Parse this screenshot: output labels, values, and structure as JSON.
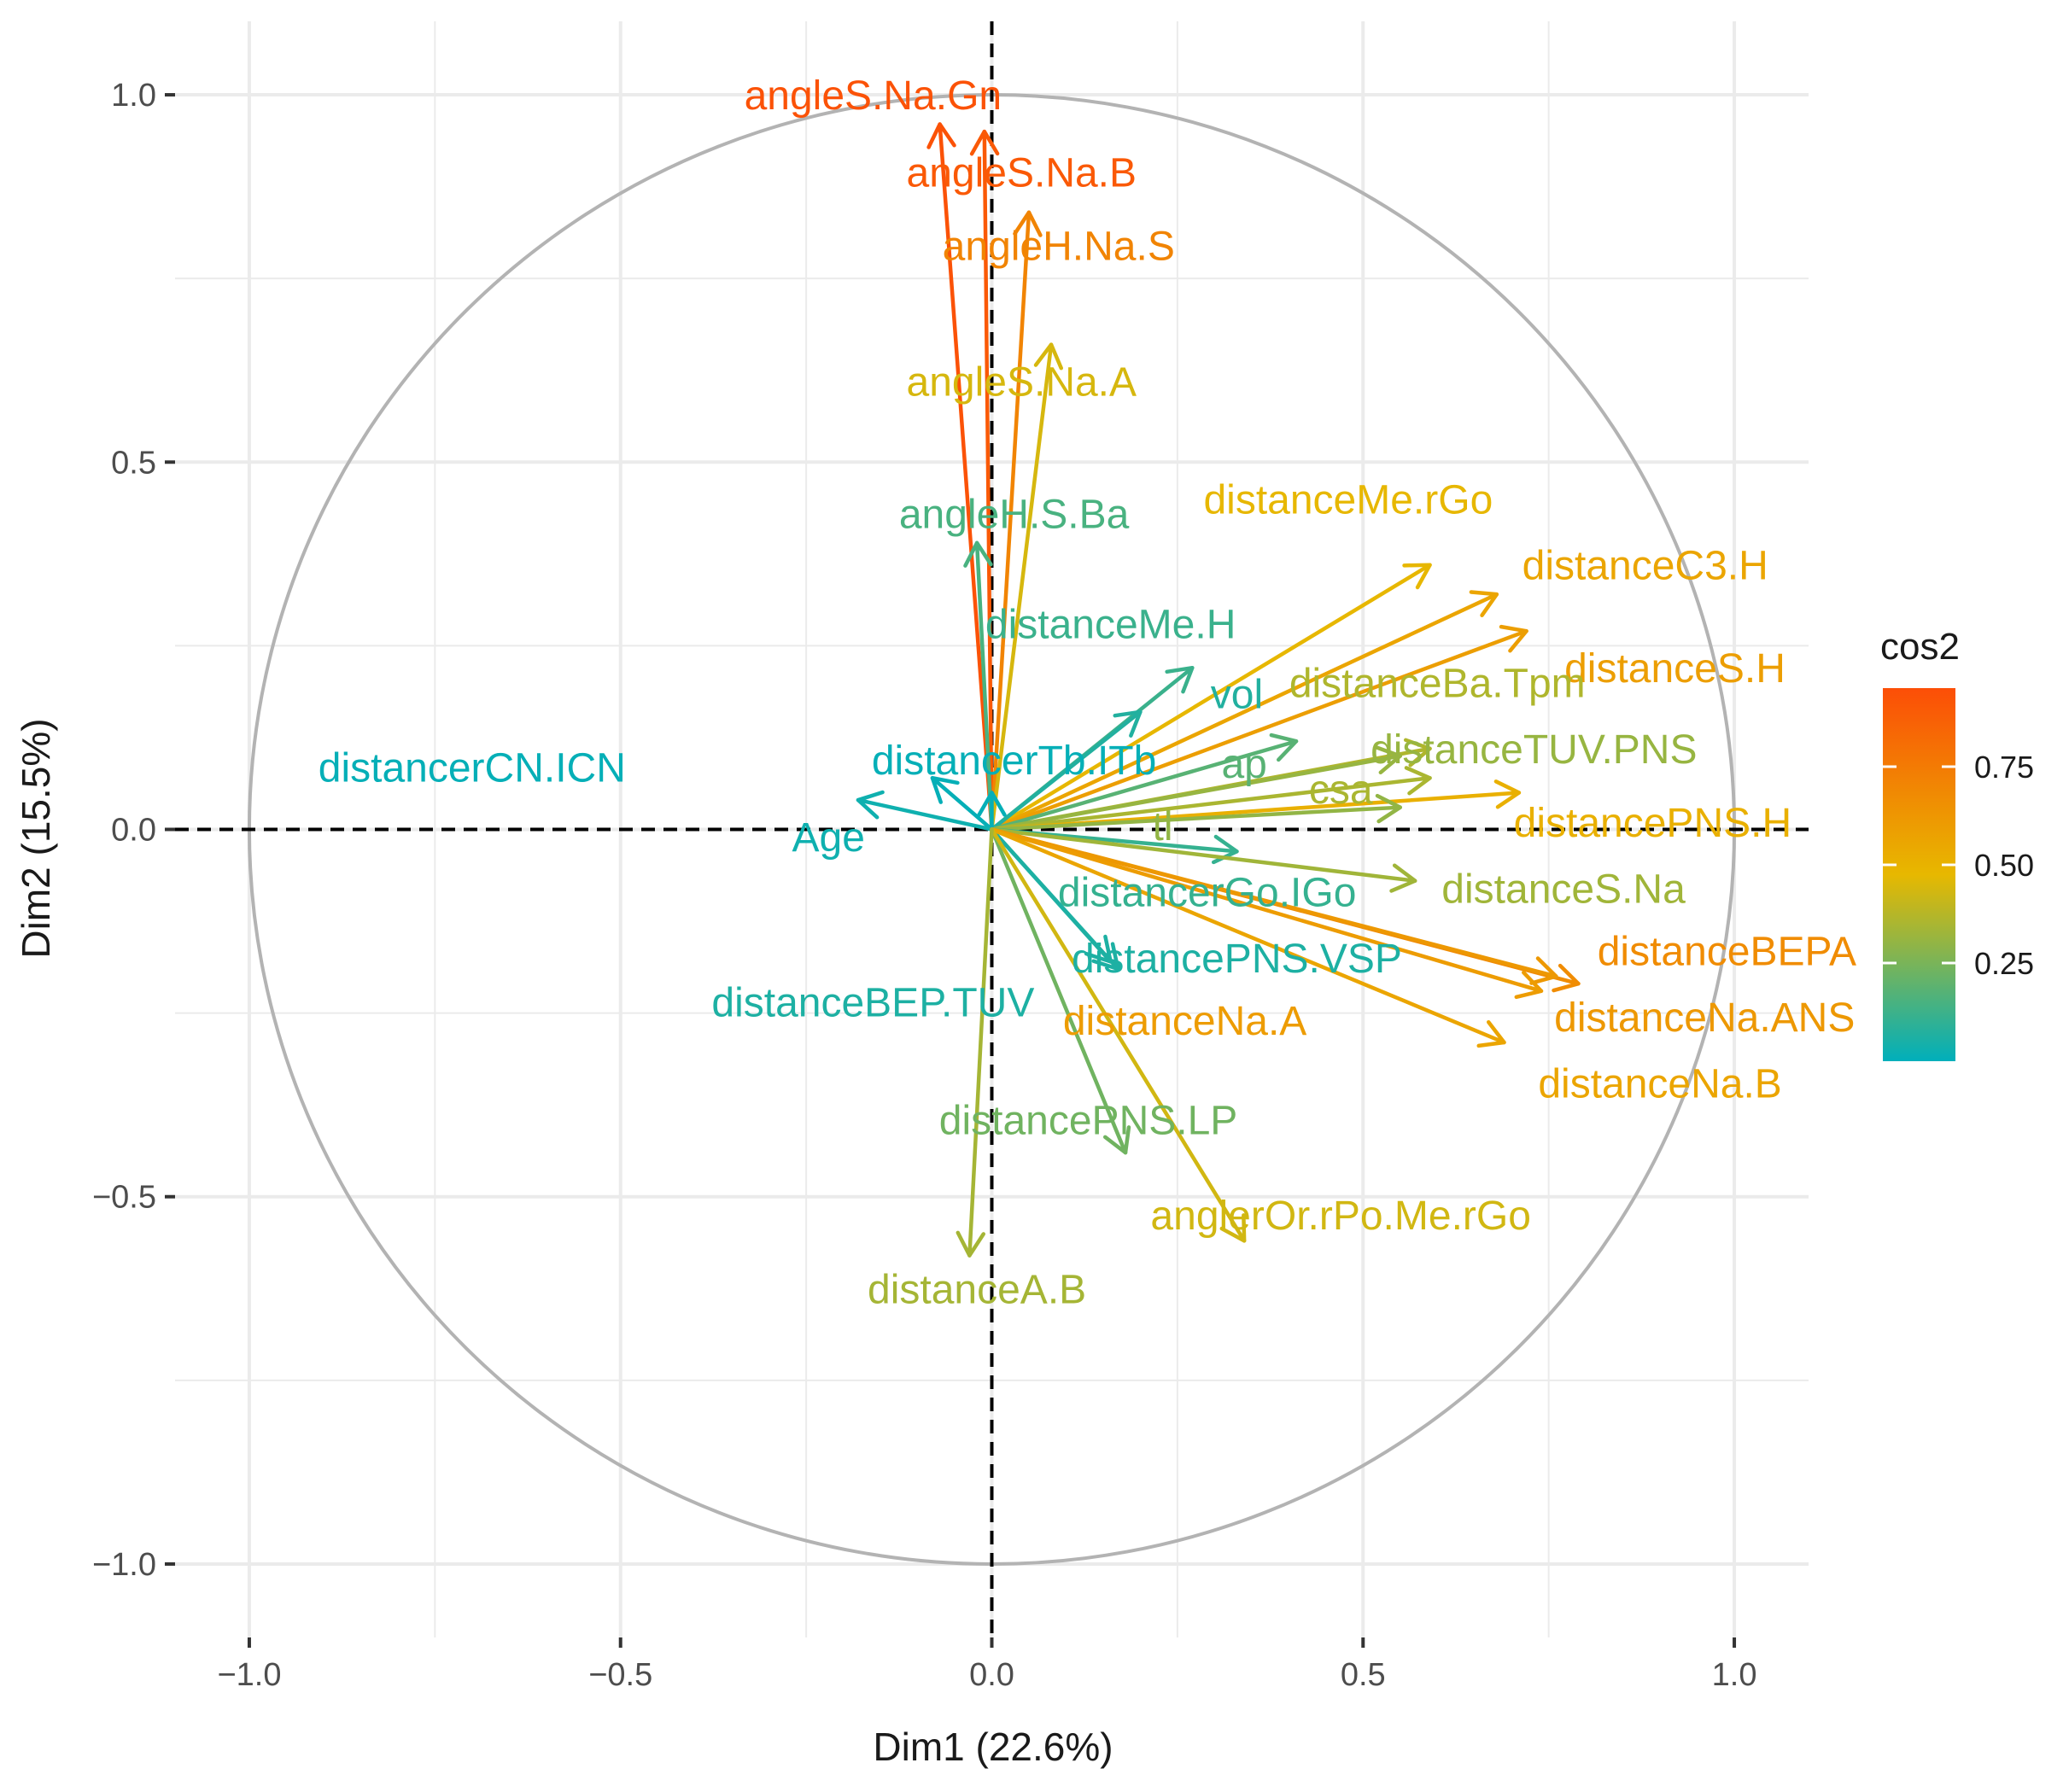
{
  "chart_data": {
    "type": "scatter",
    "subtype": "pca-variable-correlation-circle",
    "xlabel": "Dim1 (22.6%)",
    "ylabel": "Dim2 (15.5%)",
    "xlim": [
      -1.1,
      1.1
    ],
    "ylim": [
      -1.1,
      1.1
    ],
    "x_ticks": [
      -1.0,
      -0.5,
      0.0,
      0.5,
      1.0
    ],
    "y_ticks": [
      -1.0,
      -0.5,
      0.0,
      0.5,
      1.0
    ],
    "x_tick_labels": [
      "−1.0",
      "−0.5",
      "0.0",
      "0.5",
      "1.0"
    ],
    "y_tick_labels": [
      "−1.0",
      "−0.5",
      "0.0",
      "0.5",
      "1.0"
    ],
    "grid": true,
    "unit_circle": true,
    "reference_lines": "dashed lines at x = 0 and y = 0",
    "legend": {
      "title": "cos2",
      "position": "right",
      "type": "gradient",
      "range": [
        0.0,
        0.95
      ],
      "ticks": [
        0.25,
        0.5,
        0.75
      ],
      "tick_labels": [
        "0.25",
        "0.50",
        "0.75"
      ],
      "colors": [
        "#00AFBB",
        "#E7B800",
        "#FC4E07"
      ]
    },
    "variables": [
      {
        "name": "angleS.Na.Gn",
        "x": -0.07,
        "y": 0.96,
        "cos2": 0.93,
        "label_x": -0.16,
        "label_y": 1.0
      },
      {
        "name": "angleS.Na.B",
        "x": -0.01,
        "y": 0.95,
        "cos2": 0.9,
        "label_x": 0.04,
        "label_y": 0.895
      },
      {
        "name": "angleH.Na.S",
        "x": 0.05,
        "y": 0.84,
        "cos2": 0.71,
        "label_x": 0.09,
        "label_y": 0.795
      },
      {
        "name": "angleS.Na.A",
        "x": 0.08,
        "y": 0.66,
        "cos2": 0.44,
        "label_x": 0.04,
        "label_y": 0.61
      },
      {
        "name": "angleH.S.Ba",
        "x": -0.02,
        "y": 0.39,
        "cos2": 0.15,
        "label_x": 0.03,
        "label_y": 0.43
      },
      {
        "name": "distanceMe.rGo",
        "x": 0.59,
        "y": 0.36,
        "cos2": 0.48,
        "label_x": 0.48,
        "label_y": 0.45
      },
      {
        "name": "distanceC3.H",
        "x": 0.68,
        "y": 0.32,
        "cos2": 0.56,
        "label_x": 0.88,
        "label_y": 0.36
      },
      {
        "name": "distanceMe.H",
        "x": 0.27,
        "y": 0.22,
        "cos2": 0.12,
        "label_x": 0.16,
        "label_y": 0.28
      },
      {
        "name": "distanceS.H",
        "x": 0.72,
        "y": 0.27,
        "cos2": 0.59,
        "label_x": 0.92,
        "label_y": 0.22
      },
      {
        "name": "vol",
        "x": 0.2,
        "y": 0.16,
        "cos2": 0.07,
        "label_x": 0.33,
        "label_y": 0.185
      },
      {
        "name": "distanceBa.Tpm",
        "x": 0.59,
        "y": 0.11,
        "cos2": 0.36,
        "label_x": 0.6,
        "label_y": 0.2
      },
      {
        "name": "ap",
        "x": 0.41,
        "y": 0.12,
        "cos2": 0.18,
        "label_x": 0.34,
        "label_y": 0.09
      },
      {
        "name": "distanceTUV.PNS",
        "x": 0.55,
        "y": 0.1,
        "cos2": 0.31,
        "label_x": 0.73,
        "label_y": 0.11
      },
      {
        "name": "distancerCN.ICN",
        "x": -0.08,
        "y": 0.07,
        "cos2": 0.01,
        "label_x": -0.7,
        "label_y": 0.085
      },
      {
        "name": "distancerTb.ITb",
        "x": 0.0,
        "y": 0.05,
        "cos2": 0.01,
        "label_x": 0.03,
        "label_y": 0.095
      },
      {
        "name": "Age",
        "x": -0.18,
        "y": 0.04,
        "cos2": 0.03,
        "label_x": -0.22,
        "label_y": -0.01
      },
      {
        "name": "csa",
        "x": 0.59,
        "y": 0.07,
        "cos2": 0.35,
        "label_x": 0.47,
        "label_y": 0.055
      },
      {
        "name": "distancePNS.H",
        "x": 0.71,
        "y": 0.05,
        "cos2": 0.51,
        "label_x": 0.89,
        "label_y": 0.01
      },
      {
        "name": "tl",
        "x": 0.55,
        "y": 0.03,
        "cos2": 0.3,
        "label_x": 0.23,
        "label_y": 0.005
      },
      {
        "name": "distancerGo.IGo",
        "x": 0.33,
        "y": -0.03,
        "cos2": 0.11,
        "label_x": 0.29,
        "label_y": -0.085
      },
      {
        "name": "distanceS.Na",
        "x": 0.57,
        "y": -0.07,
        "cos2": 0.33,
        "label_x": 0.77,
        "label_y": -0.08
      },
      {
        "name": "distanceBEPA",
        "x": 0.79,
        "y": -0.21,
        "cos2": 0.67,
        "label_x": 0.99,
        "label_y": -0.165
      },
      {
        "name": "distancePNS.VSP",
        "x": 0.17,
        "y": -0.19,
        "cos2": 0.06,
        "label_x": 0.33,
        "label_y": -0.175
      },
      {
        "name": "distanceNa.ANS",
        "x": 0.76,
        "y": -0.2,
        "cos2": 0.62,
        "label_x": 0.96,
        "label_y": -0.255
      },
      {
        "name": "distanceBEP.TUV",
        "x": 0.16,
        "y": -0.18,
        "cos2": 0.06,
        "label_x": -0.16,
        "label_y": -0.235
      },
      {
        "name": "distanceNa.A",
        "x": 0.74,
        "y": -0.22,
        "cos2": 0.6,
        "label_x": 0.26,
        "label_y": -0.26
      },
      {
        "name": "distanceNa.B",
        "x": 0.69,
        "y": -0.29,
        "cos2": 0.56,
        "label_x": 0.9,
        "label_y": -0.345
      },
      {
        "name": "distancePNS.LP",
        "x": 0.18,
        "y": -0.44,
        "cos2": 0.23,
        "label_x": 0.13,
        "label_y": -0.395
      },
      {
        "name": "anglerOr.rPo.Me.rGo",
        "x": 0.34,
        "y": -0.56,
        "cos2": 0.43,
        "label_x": 0.47,
        "label_y": -0.525
      },
      {
        "name": "distanceA.B",
        "x": -0.03,
        "y": -0.58,
        "cos2": 0.34,
        "label_x": -0.02,
        "label_y": -0.625
      }
    ]
  }
}
